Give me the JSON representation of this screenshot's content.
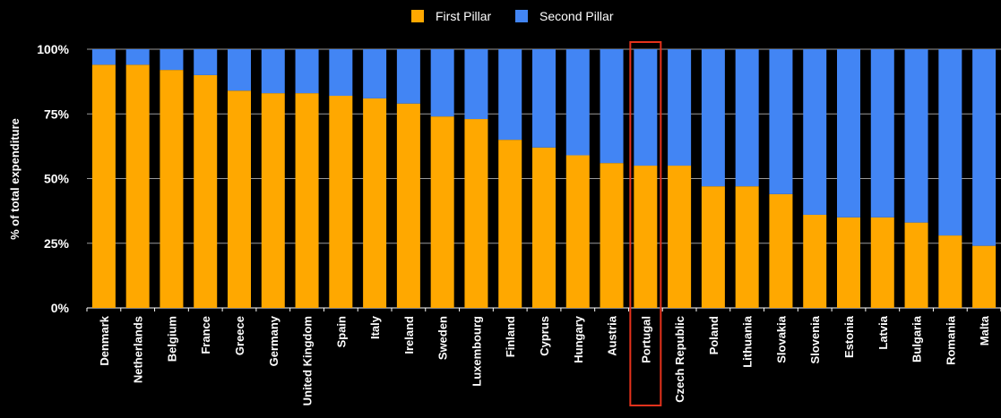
{
  "chart_data": {
    "type": "bar",
    "stacked": true,
    "percent": true,
    "title": "",
    "xlabel": "",
    "ylabel": "% of total expenditure",
    "ylim": [
      0,
      100
    ],
    "yticks": [
      "0%",
      "25%",
      "50%",
      "75%",
      "100%"
    ],
    "grid": true,
    "legend_position": "top-center",
    "highlight_category": "Portugal",
    "highlight_color": "#e5321c",
    "categories": [
      "Denmark",
      "Netherlands",
      "Belgium",
      "France",
      "Greece",
      "Germany",
      "United Kingdom",
      "Spain",
      "Italy",
      "Ireland",
      "Sweden",
      "Luxembourg",
      "Finland",
      "Cyprus",
      "Hungary",
      "Austria",
      "Portugal",
      "Czech Republic",
      "Poland",
      "Lithuania",
      "Slovakia",
      "Slovenia",
      "Estonia",
      "Latvia",
      "Bulgaria",
      "Romania",
      "Malta"
    ],
    "series": [
      {
        "name": "First Pillar",
        "color": "#ffa800",
        "values": [
          94,
          94,
          92,
          90,
          84,
          83,
          83,
          82,
          81,
          79,
          74,
          73,
          65,
          62,
          59,
          56,
          55,
          55,
          47,
          47,
          44,
          36,
          35,
          35,
          33,
          28,
          24
        ]
      },
      {
        "name": "Second Pillar",
        "color": "#4285f4",
        "values": [
          6,
          6,
          8,
          10,
          16,
          17,
          17,
          18,
          19,
          21,
          26,
          27,
          35,
          38,
          41,
          44,
          45,
          45,
          53,
          53,
          56,
          64,
          65,
          65,
          67,
          72,
          76
        ]
      }
    ]
  }
}
